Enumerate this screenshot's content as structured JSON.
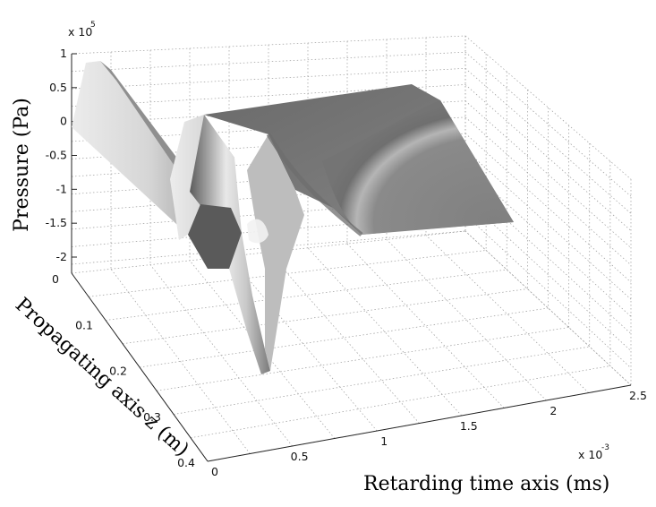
{
  "chart_data": {
    "type": "surface",
    "xlabel": "Retarding time axis (ms)",
    "ylabel": "Propagating axis z (m)",
    "zlabel": "Pressure (Pa)",
    "x_ticks": [
      "0",
      "0.5",
      "1",
      "1.5",
      "2",
      "2.5"
    ],
    "x_tick_values": [
      0,
      0.5,
      1,
      1.5,
      2,
      2.5
    ],
    "x_multiplier": "x 10",
    "x_multiplier_exp": "-3",
    "y_ticks": [
      "0",
      "0.1",
      "0.2",
      "0.3",
      "0.4"
    ],
    "y_tick_values": [
      0,
      0.1,
      0.2,
      0.3,
      0.4
    ],
    "z_ticks": [
      "1",
      "0.5",
      "0",
      "-0.5",
      "-1",
      "-1.5",
      "-2"
    ],
    "z_tick_values": [
      1,
      0.5,
      0,
      -0.5,
      -1,
      -1.5,
      -2
    ],
    "z_multiplier": "x 10",
    "z_multiplier_exp": "5",
    "xlim": [
      0,
      2.5
    ],
    "ylim": [
      0,
      0.4
    ],
    "zlim": [
      -2,
      1
    ],
    "grid": true,
    "colormap": "gray",
    "surface_colors": {
      "light": "#e2e2e2",
      "mid": "#b4b4b4",
      "dark": "#6f6f6f"
    }
  }
}
